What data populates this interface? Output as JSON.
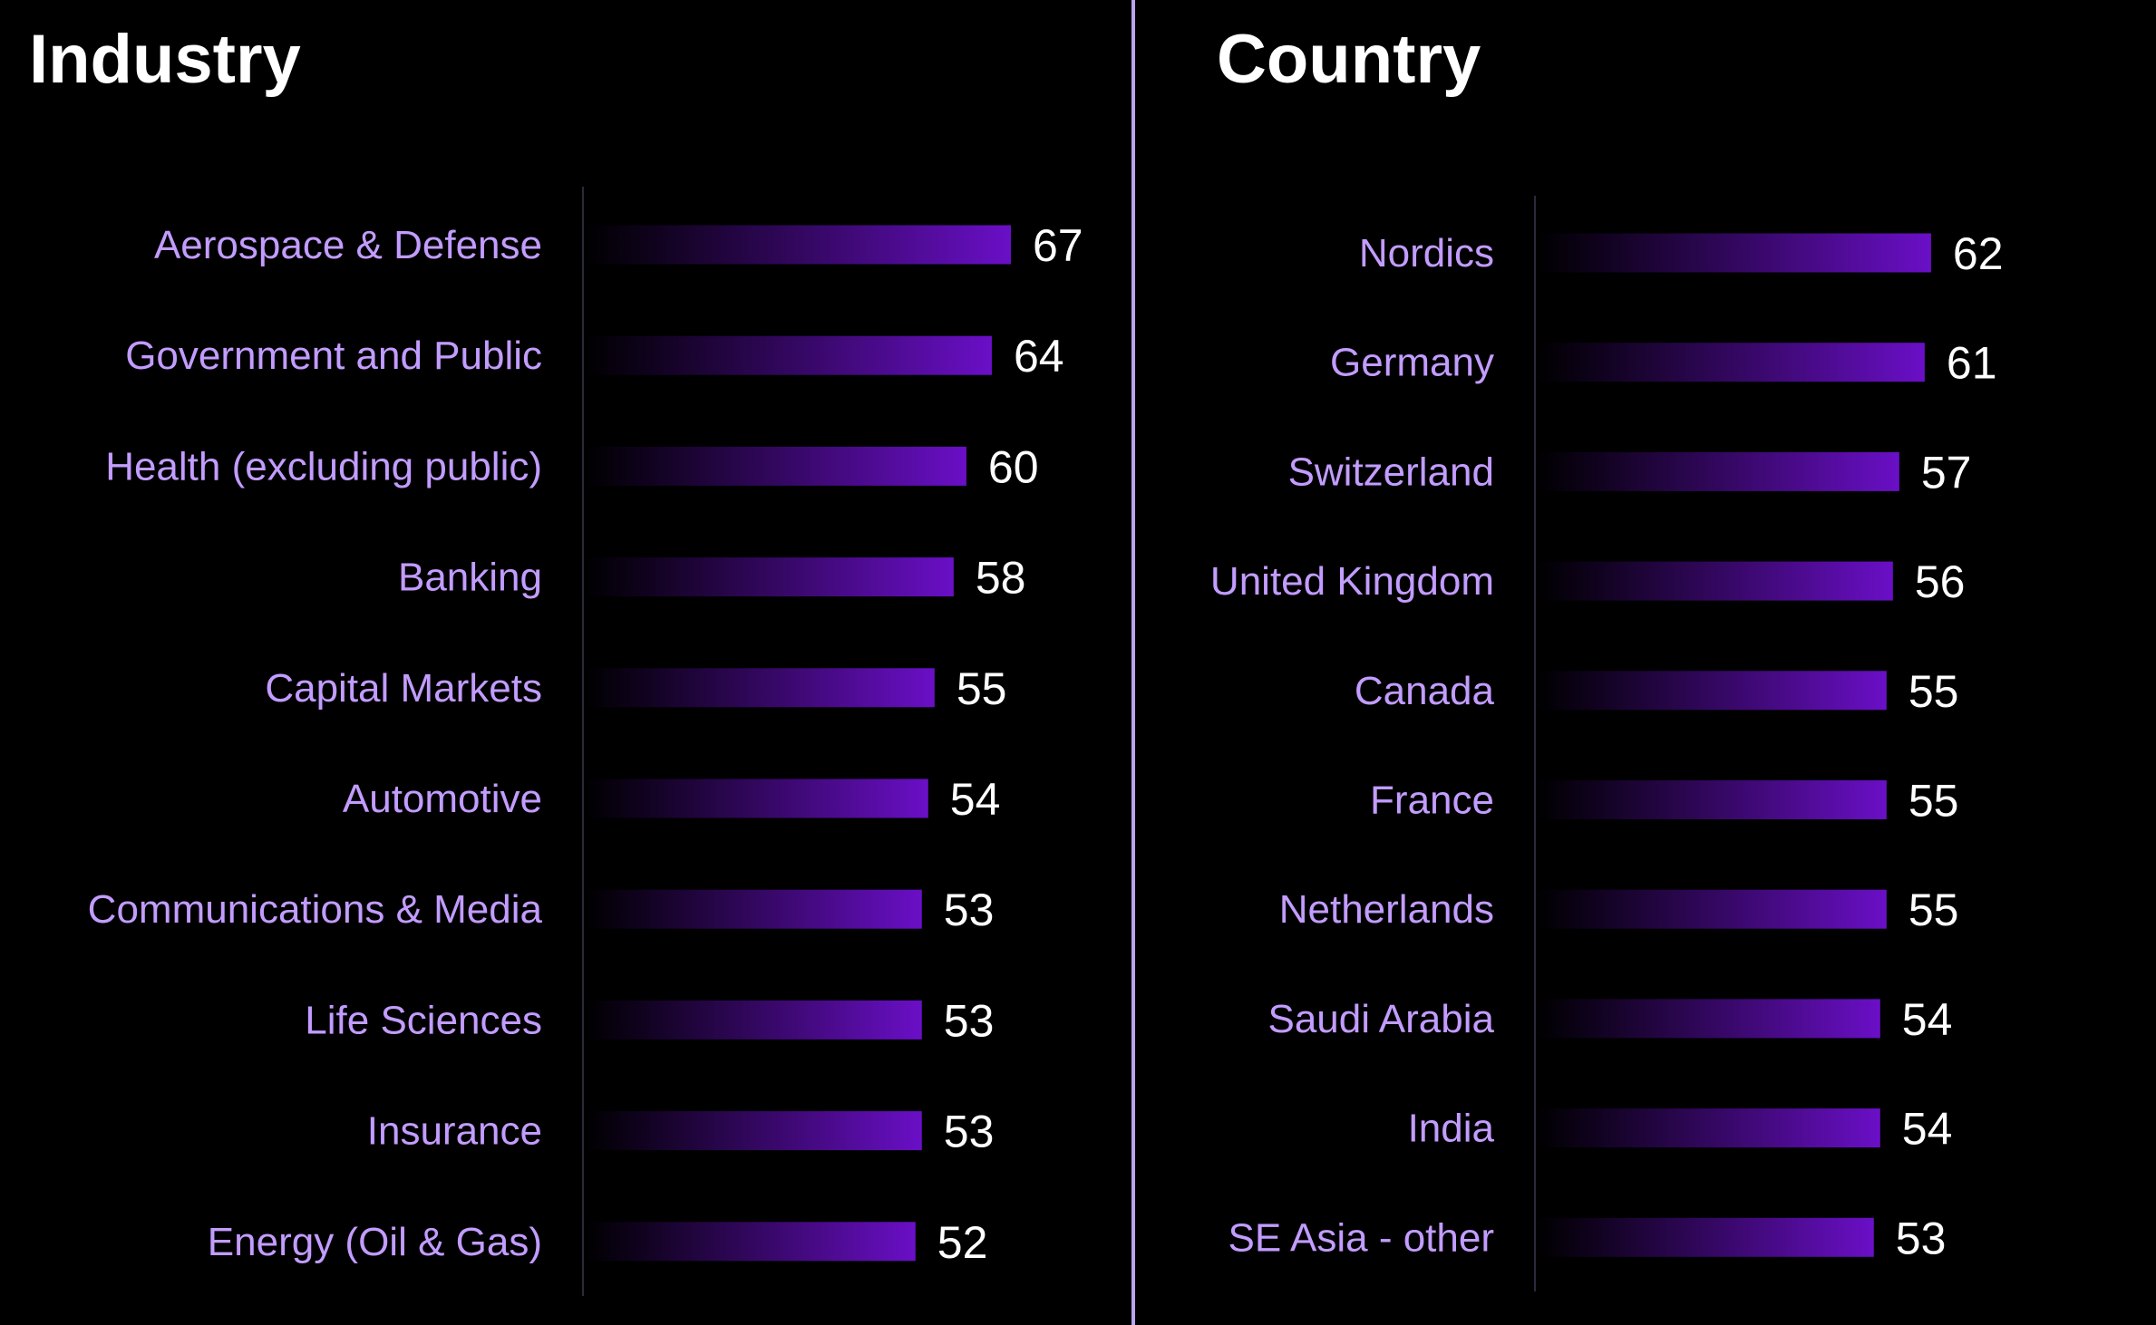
{
  "colors": {
    "background": "#000000",
    "divider": "#b9a4ee",
    "label": "#c29cff",
    "value": "#ffffff",
    "bar_start": "#000000",
    "bar_end": "#6a0fc7",
    "axis": "#2a2a3a"
  },
  "chart_data": [
    {
      "type": "bar",
      "orientation": "horizontal",
      "title": "Industry",
      "categories": [
        "Aerospace & Defense",
        "Government and Public",
        "Health (excluding public)",
        "Banking",
        "Capital Markets",
        "Automotive",
        "Communications & Media",
        "Life Sciences",
        "Insurance",
        "Energy (Oil & Gas)"
      ],
      "values": [
        67,
        64,
        60,
        58,
        55,
        54,
        53,
        53,
        53,
        52
      ],
      "grid": false,
      "data_labels": true
    },
    {
      "type": "bar",
      "orientation": "horizontal",
      "title": "Country",
      "categories": [
        "Nordics",
        "Germany",
        "Switzerland",
        "United Kingdom",
        "Canada",
        "France",
        "Netherlands",
        "Saudi Arabia",
        "India",
        "SE Asia - other"
      ],
      "values": [
        62,
        61,
        57,
        56,
        55,
        55,
        55,
        54,
        54,
        53
      ],
      "grid": false,
      "data_labels": true
    }
  ]
}
